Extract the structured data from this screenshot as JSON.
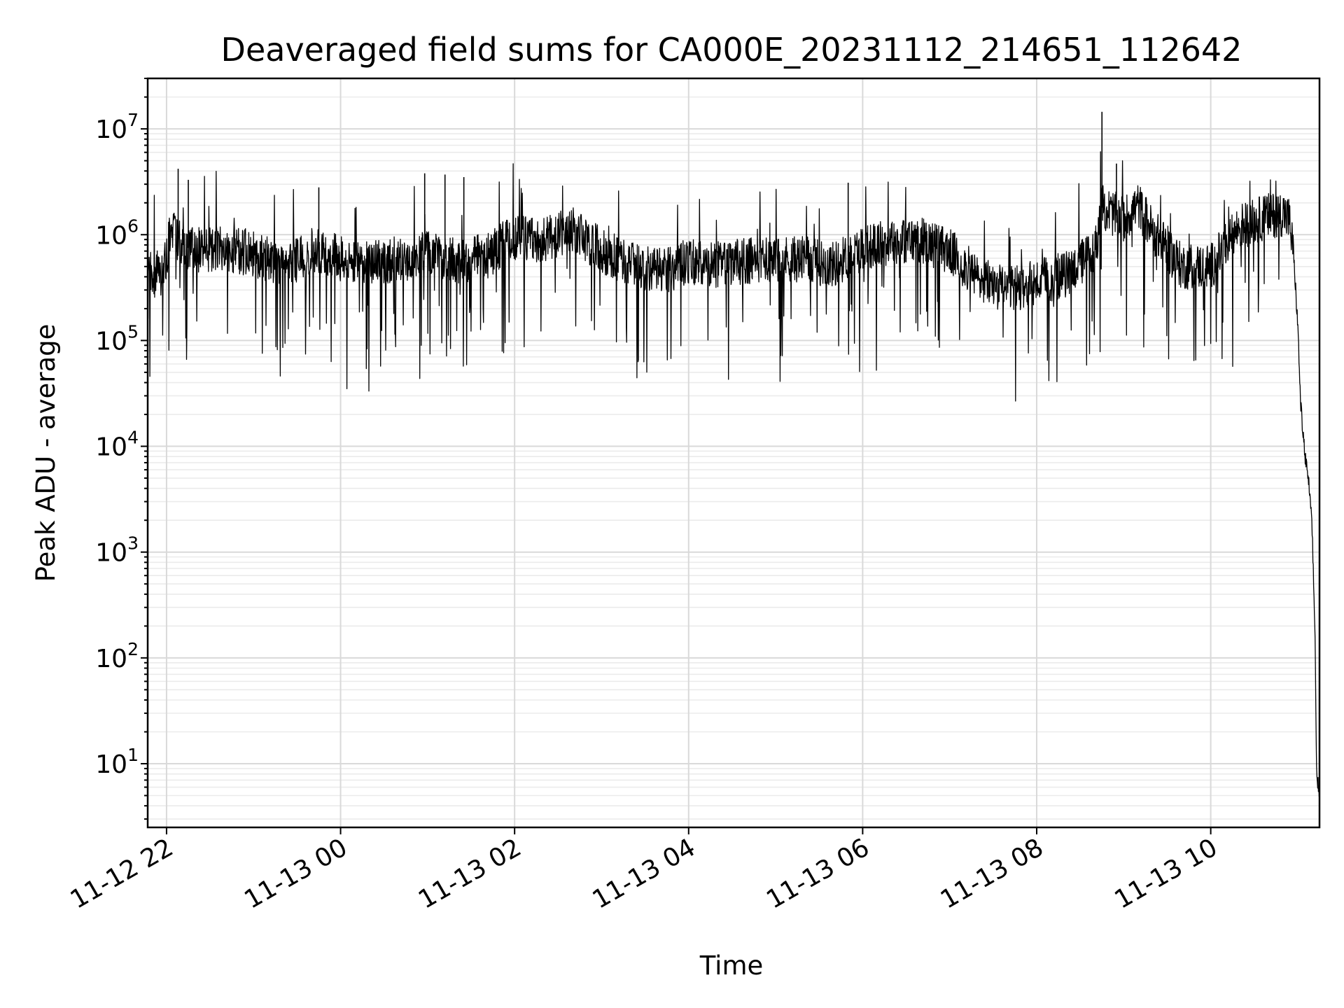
{
  "chart_data": {
    "type": "line",
    "title": "Deaveraged field sums for CA000E_20231112_214651_112642",
    "xlabel": "Time",
    "ylabel": "Peak ADU - average",
    "yscale": "log",
    "ylim": [
      2.5,
      30000000
    ],
    "xlim": [
      "2023-11-12 21:47",
      "2023-11-13 11:15"
    ],
    "grid": true,
    "legend": "none",
    "line_color": "#000000",
    "x_ticks": [
      "11-12 22",
      "11-13 00",
      "11-13 02",
      "11-13 04",
      "11-13 06",
      "11-13 08",
      "11-13 10"
    ],
    "x_tick_times": [
      "2023-11-12 22:00",
      "2023-11-13 00:00",
      "2023-11-13 02:00",
      "2023-11-13 04:00",
      "2023-11-13 06:00",
      "2023-11-13 08:00",
      "2023-11-13 10:00"
    ],
    "y_ticks": [
      {
        "base": "10",
        "exp": "1",
        "value": 10
      },
      {
        "base": "10",
        "exp": "2",
        "value": 100
      },
      {
        "base": "10",
        "exp": "3",
        "value": 1000
      },
      {
        "base": "10",
        "exp": "4",
        "value": 10000
      },
      {
        "base": "10",
        "exp": "5",
        "value": 100000
      },
      {
        "base": "10",
        "exp": "6",
        "value": 1000000
      },
      {
        "base": "10",
        "exp": "7",
        "value": 10000000
      }
    ],
    "series": [
      {
        "x": [
          "2023-11-12 21:47",
          "2023-11-12 21:58",
          "2023-11-12 22:03",
          "2023-11-12 22:10",
          "2023-11-12 22:20",
          "2023-11-12 22:40",
          "2023-11-12 23:00",
          "2023-11-12 23:20",
          "2023-11-12 23:40",
          "2023-11-13 00:00",
          "2023-11-13 00:20",
          "2023-11-13 00:40",
          "2023-11-13 01:00",
          "2023-11-13 01:20",
          "2023-11-13 01:40",
          "2023-11-13 02:00",
          "2023-11-13 02:20",
          "2023-11-13 02:40",
          "2023-11-13 03:00",
          "2023-11-13 03:20",
          "2023-11-13 03:40",
          "2023-11-13 04:00",
          "2023-11-13 04:20",
          "2023-11-13 04:40",
          "2023-11-13 05:00",
          "2023-11-13 05:20",
          "2023-11-13 05:40",
          "2023-11-13 06:00",
          "2023-11-13 06:20",
          "2023-11-13 06:40",
          "2023-11-13 07:00",
          "2023-11-13 07:20",
          "2023-11-13 07:40",
          "2023-11-13 08:00",
          "2023-11-13 08:20",
          "2023-11-13 08:40",
          "2023-11-13 08:45",
          "2023-11-13 09:00",
          "2023-11-13 09:10",
          "2023-11-13 09:20",
          "2023-11-13 09:40",
          "2023-11-13 10:00",
          "2023-11-13 10:20",
          "2023-11-13 10:40",
          "2023-11-13 10:50",
          "2023-11-13 10:54",
          "2023-11-13 10:57",
          "2023-11-13 11:00",
          "2023-11-13 11:02",
          "2023-11-13 11:05",
          "2023-11-13 11:08",
          "2023-11-13 11:10",
          "2023-11-13 11:12",
          "2023-11-13 11:13",
          "2023-11-13 11:15"
        ],
        "y": [
          420000,
          430000,
          1100000,
          800000,
          700000,
          750000,
          650000,
          550000,
          700000,
          600000,
          520000,
          600000,
          650000,
          560000,
          620000,
          950000,
          900000,
          1100000,
          700000,
          520000,
          450000,
          550000,
          520000,
          560000,
          600000,
          580000,
          520000,
          750000,
          850000,
          900000,
          700000,
          380000,
          300000,
          350000,
          420000,
          700000,
          1800000,
          1400000,
          1900000,
          1100000,
          500000,
          500000,
          1200000,
          1500000,
          1600000,
          1400000,
          700000,
          140000,
          25000,
          8000,
          4000,
          1500,
          150,
          8,
          5
        ]
      }
    ]
  }
}
